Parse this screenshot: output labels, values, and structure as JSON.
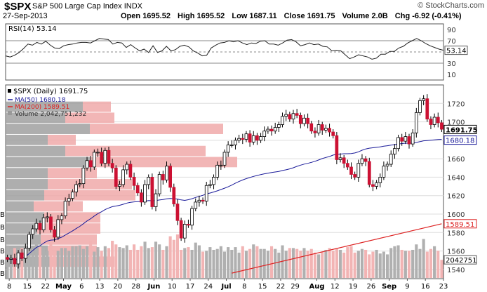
{
  "header": {
    "symbol": "$SPX",
    "name": "S&P 500 Large Cap Index",
    "exchange": "INDX",
    "date": "27-Sep-2013",
    "open_label": "Open",
    "open": "1695.52",
    "high_label": "High",
    "high": "1695.52",
    "low_label": "Low",
    "low": "1687.11",
    "close_label": "Close",
    "close": "1691.75",
    "volume_label": "Volume",
    "volume": "2.0B",
    "chg_label": "Chg",
    "chg": "-6.92 (-0.41%)",
    "watermark": "© StockCharts.com"
  },
  "chart_data": [
    {
      "type": "line",
      "panel": "indicator",
      "legend": "RSI(14) 53.14",
      "ylim": [
        0,
        100
      ],
      "yticks": [
        10,
        30,
        50,
        70,
        90
      ],
      "reference_lines": [
        30,
        50,
        70
      ],
      "last_value": "53.14",
      "values": [
        43,
        41,
        44,
        49,
        56,
        64,
        62,
        67,
        64,
        69,
        62,
        57,
        56,
        61,
        63,
        64,
        66,
        67,
        67,
        66,
        70,
        74,
        73,
        72,
        64,
        67,
        66,
        58,
        63,
        57,
        52,
        55,
        49,
        61,
        49,
        52,
        60,
        52,
        54,
        60,
        62,
        59,
        52,
        48,
        43,
        44,
        57,
        62,
        66,
        67,
        70,
        68,
        70,
        66,
        63,
        66,
        65,
        69,
        70,
        64,
        64,
        62,
        66,
        71,
        72,
        68,
        61,
        63,
        66,
        63,
        64,
        60,
        59,
        52,
        53,
        52,
        45,
        38,
        41,
        45,
        43,
        41,
        37,
        39,
        46,
        46,
        51,
        51,
        57,
        60,
        66,
        70,
        74,
        70,
        65,
        61,
        58,
        55,
        53
      ]
    },
    {
      "type": "candlestick",
      "panel": "price",
      "title": "$SPX (Daily) 1691.75",
      "ylim": [
        1530,
        1740
      ],
      "yticks": [
        1540,
        1560,
        1580,
        1600,
        1620,
        1640,
        1660,
        1680,
        1700,
        1720
      ],
      "xticks": [
        "8",
        "15",
        "22",
        "May",
        "6",
        "13",
        "20",
        "28",
        "Jun",
        "10",
        "17",
        "24",
        "Jul",
        "8",
        "15",
        "22",
        "29",
        "Aug",
        "12",
        "19",
        "26",
        "Sep",
        "9",
        "16",
        "23"
      ],
      "close": [
        1551,
        1552,
        1546,
        1558,
        1552,
        1563,
        1578,
        1584,
        1590,
        1583,
        1596,
        1597,
        1583,
        1575,
        1594,
        1598,
        1614,
        1617,
        1624,
        1632,
        1633,
        1650,
        1658,
        1651,
        1667,
        1667,
        1655,
        1669,
        1655,
        1650,
        1630,
        1632,
        1648,
        1654,
        1640,
        1631,
        1623,
        1613,
        1632,
        1640,
        1608,
        1622,
        1643,
        1637,
        1652,
        1629,
        1611,
        1593,
        1574,
        1589,
        1588,
        1606,
        1613,
        1615,
        1614,
        1631,
        1632,
        1640,
        1653,
        1653,
        1667,
        1675,
        1675,
        1680,
        1682,
        1681,
        1687,
        1678,
        1685,
        1680,
        1684,
        1690,
        1692,
        1690,
        1694,
        1697,
        1706,
        1708,
        1703,
        1709,
        1707,
        1698,
        1704,
        1698,
        1690,
        1688,
        1697,
        1691,
        1693,
        1689,
        1685,
        1659,
        1661,
        1655,
        1651,
        1643,
        1640,
        1655,
        1660,
        1657,
        1632,
        1630,
        1634,
        1640,
        1652,
        1654,
        1665,
        1671,
        1683,
        1679,
        1684,
        1676,
        1688,
        1710,
        1723,
        1725,
        1703,
        1697,
        1705,
        1699,
        1692
      ],
      "series": [
        {
          "name": "MA(50)",
          "legend": "MA(50) 1680.18",
          "last_value": "1680.18",
          "color": "#1a1a99"
        },
        {
          "name": "MA(200)",
          "legend": "MA(200) 1589.51",
          "last_value": "1589.51",
          "color": "#dd2222"
        }
      ],
      "last_close": "1691.75"
    },
    {
      "type": "bar",
      "panel": "volume",
      "legend": "Volume 2,042,751,232",
      "last_value": "2042751",
      "values": [
        3.6,
        3.2,
        3.3,
        2.9,
        3.3,
        3.6,
        3.2,
        3.1,
        3.9,
        3.4,
        3.3,
        3.0,
        4.0,
        2.9,
        3.0,
        3.3,
        3.3,
        3.0,
        3.5,
        3.5,
        3.6,
        3.2,
        3.5,
        4.1,
        2.9,
        3.4,
        3.0,
        3.5,
        3.3,
        4.1,
        3.7,
        3.4,
        3.3,
        3.6,
        3.1,
        3.7,
        3.1,
        3.5,
        4.0,
        3.3,
        3.4,
        4.0,
        3.7,
        3.1,
        3.5,
        4.6,
        4.2,
        4.8,
        3.1,
        3.3,
        3.4,
        3.1,
        3.9,
        3.6,
        2.9,
        3.0,
        3.4,
        3.1,
        3.2,
        3.5,
        2.9,
        3.4,
        3.1,
        3.4,
        2.8,
        3.5,
        3.0,
        3.2,
        3.7,
        3.5,
        3.2,
        3.2,
        3.0,
        3.5,
        3.2,
        2.8,
        3.6,
        3.0,
        3.3,
        3.3,
        3.2,
        3.0,
        3.3,
        3.0,
        3.2,
        2.8,
        2.6,
        2.9,
        3.1,
        3.3,
        3.0,
        3.2,
        3.1,
        2.8,
        3.4,
        3.5,
        2.8,
        3.0,
        3.2,
        3.1,
        2.6,
        2.9,
        3.1,
        2.7,
        2.9,
        2.6,
        3.3,
        3.5,
        3.6,
        3.1,
        3.0,
        3.0,
        3.1,
        3.7,
        3.2,
        4.3,
        2.9,
        3.2,
        3.5,
        3.0,
        2.0
      ],
      "bar_colors": [
        "gray",
        "pink"
      ]
    },
    {
      "type": "bar",
      "panel": "volume-by-price",
      "orientation": "horizontal",
      "price_ranges": [
        [
          1734,
          1722
        ],
        [
          1722,
          1710
        ],
        [
          1710,
          1698
        ],
        [
          1698,
          1686
        ],
        [
          1686,
          1674
        ],
        [
          1674,
          1662
        ],
        [
          1662,
          1650
        ],
        [
          1650,
          1638
        ],
        [
          1638,
          1626
        ],
        [
          1626,
          1614
        ],
        [
          1614,
          1602
        ],
        [
          1602,
          1590
        ],
        [
          1590,
          1578
        ],
        [
          1578,
          1566
        ],
        [
          1566,
          1554
        ],
        [
          1554,
          1542
        ]
      ],
      "up": [
        0,
        110,
        85,
        120,
        60,
        85,
        120,
        60,
        60,
        55,
        40,
        55,
        45,
        50,
        60,
        65
      ],
      "down": [
        0,
        40,
        70,
        190,
        40,
        200,
        210,
        70,
        120,
        130,
        70,
        80,
        90,
        80,
        70,
        90
      ],
      "color_up": "#a0a0a0",
      "color_down": "#f0a9a9"
    }
  ],
  "left_margin_labels": [
    "B",
    "B",
    "B",
    "B",
    "B",
    "B"
  ]
}
